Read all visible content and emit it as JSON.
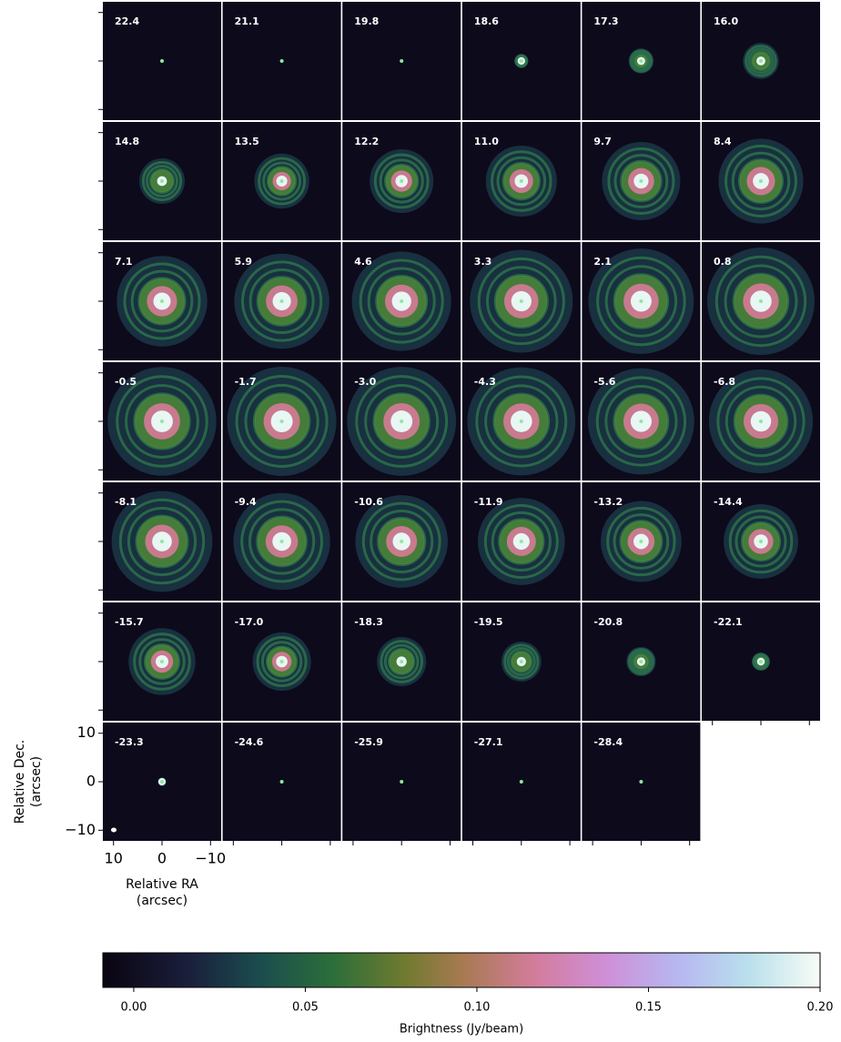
{
  "chart_data": {
    "type": "channel_map",
    "channels": [
      "22.4",
      "21.1",
      "19.8",
      "18.6",
      "17.3",
      "16.0",
      "14.8",
      "13.5",
      "12.2",
      "11.0",
      "9.7",
      "8.4",
      "7.1",
      "5.9",
      "4.6",
      "3.3",
      "2.1",
      "0.8",
      "-0.5",
      "-1.7",
      "-3.0",
      "-4.3",
      "-5.6",
      "-6.8",
      "-8.1",
      "-9.4",
      "-10.6",
      "-11.9",
      "-13.2",
      "-14.4",
      "-15.7",
      "-17.0",
      "-18.3",
      "-19.5",
      "-20.8",
      "-22.1",
      "-23.3",
      "-24.6",
      "-25.9",
      "-27.1",
      "-28.4"
    ],
    "xlabel": [
      "Relative RA",
      "(arcsec)"
    ],
    "ylabel": [
      "Relative Dec.",
      "(arcsec)"
    ],
    "xlim": [
      12.2,
      -12.2
    ],
    "ylim": [
      -12.2,
      12.2
    ],
    "xticks": [
      10,
      0,
      {
        "value": -10,
        "label": "−10"
      }
    ],
    "yticks": [
      {
        "value": -10,
        "label": "−10"
      },
      0,
      10
    ],
    "colorbar": {
      "label": "Brightness (Jy/beam)",
      "lim": [
        -0.009,
        0.2
      ],
      "ticks": [
        {
          "value": 0,
          "label": "0.00"
        },
        {
          "value": 0.05,
          "label": "0.05"
        },
        {
          "value": 0.1,
          "label": "0.10"
        },
        {
          "value": 0.15,
          "label": "0.15"
        },
        {
          "value": 0.2,
          "label": "0.20"
        }
      ]
    }
  }
}
